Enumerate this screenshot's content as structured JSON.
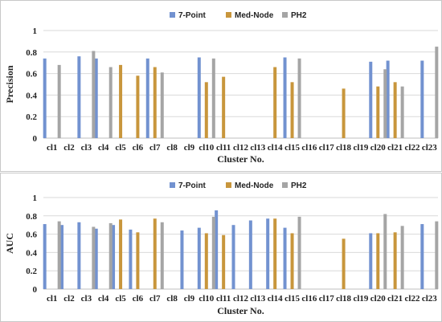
{
  "chart_data": [
    {
      "type": "bar",
      "ylabel": "Precision",
      "xlabel": "Cluster No.",
      "ylim": [
        0,
        1
      ],
      "yticks": [
        "0",
        "0.2",
        "0.4",
        "0.6",
        "0.8",
        "1"
      ],
      "grid": true,
      "legend_position": "top-center",
      "categories": [
        "cl1",
        "cl2",
        "cl3",
        "cl4",
        "cl5",
        "cl6",
        "cl7",
        "cl8",
        "cl9",
        "cl10",
        "cl11",
        "cl12",
        "cl13",
        "cl14",
        "cl15",
        "cl16",
        "cl17",
        "cl18",
        "cl19",
        "cl20",
        "cl21",
        "cl22",
        "cl23"
      ],
      "series": [
        {
          "name": "7-Point",
          "color": "#7292d0",
          "values": [
            0.74,
            null,
            0.76,
            0.74,
            null,
            null,
            0.74,
            null,
            null,
            0.75,
            null,
            null,
            null,
            null,
            0.75,
            null,
            null,
            null,
            null,
            0.71,
            0.72,
            null,
            0.72
          ]
        },
        {
          "name": "Med-Node",
          "color": "#c8963c",
          "values": [
            null,
            null,
            null,
            null,
            0.68,
            0.58,
            0.66,
            null,
            null,
            0.52,
            0.57,
            null,
            null,
            0.66,
            0.52,
            null,
            null,
            0.46,
            null,
            0.48,
            0.52,
            null,
            null
          ]
        },
        {
          "name": "PH2",
          "color": "#a5a5a5",
          "values": [
            0.68,
            null,
            0.81,
            0.66,
            null,
            null,
            0.61,
            null,
            null,
            0.74,
            null,
            null,
            null,
            null,
            0.74,
            null,
            null,
            null,
            null,
            0.64,
            0.48,
            null,
            0.85
          ]
        }
      ]
    },
    {
      "type": "bar",
      "ylabel": "AUC",
      "xlabel": "Cluster No.",
      "ylim": [
        0,
        1
      ],
      "yticks": [
        "0",
        "0.2",
        "0.4",
        "0.6",
        "0.8",
        "1"
      ],
      "grid": true,
      "legend_position": "top-center",
      "categories": [
        "cl1",
        "cl2",
        "cl3",
        "cl4",
        "cl5",
        "cl6",
        "cl7",
        "cl8",
        "cl9",
        "cl10",
        "cl11",
        "cl12",
        "cl13",
        "cl14",
        "cl15",
        "cl16",
        "cl17",
        "cl18",
        "cl19",
        "cl20",
        "cl21",
        "cl22",
        "cl23"
      ],
      "series": [
        {
          "name": "7-Point",
          "color": "#7292d0",
          "values": [
            0.71,
            0.7,
            0.73,
            0.66,
            0.7,
            0.65,
            null,
            null,
            0.64,
            0.67,
            0.86,
            0.7,
            0.75,
            0.77,
            0.67,
            null,
            null,
            null,
            null,
            0.61,
            null,
            null,
            0.71
          ]
        },
        {
          "name": "Med-Node",
          "color": "#c8963c",
          "values": [
            null,
            null,
            null,
            null,
            0.76,
            0.62,
            0.77,
            null,
            null,
            0.61,
            0.59,
            null,
            null,
            0.77,
            0.61,
            null,
            null,
            0.55,
            null,
            0.61,
            0.62,
            null,
            null
          ]
        },
        {
          "name": "PH2",
          "color": "#a5a5a5",
          "values": [
            0.74,
            null,
            0.68,
            0.72,
            null,
            null,
            0.73,
            null,
            null,
            0.79,
            null,
            null,
            null,
            null,
            0.79,
            null,
            null,
            null,
            null,
            0.82,
            0.69,
            null,
            0.74
          ]
        }
      ]
    }
  ]
}
